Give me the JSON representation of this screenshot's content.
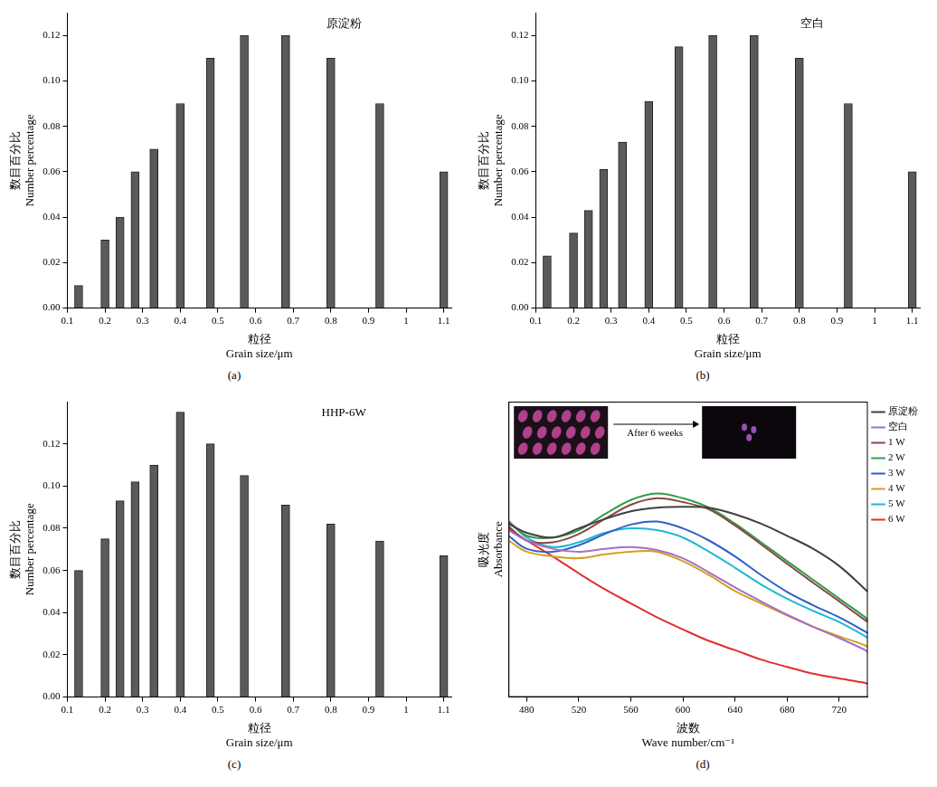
{
  "chart_data": [
    {
      "type": "bar",
      "title": "原淀粉",
      "panel_label": "(a)",
      "xlabel": [
        "粒径",
        "Grain size/μm"
      ],
      "ylabel": [
        "数目百分比",
        "Number percentage"
      ],
      "x": [
        0.13,
        0.2,
        0.24,
        0.28,
        0.33,
        0.4,
        0.48,
        0.57,
        0.68,
        0.8,
        0.93,
        1.1
      ],
      "values": [
        0.01,
        0.03,
        0.04,
        0.06,
        0.07,
        0.09,
        0.11,
        0.12,
        0.12,
        0.11,
        0.09,
        0.06
      ],
      "color": "#5a5a5a",
      "xlim": [
        0.1,
        1.12
      ],
      "xticks": [
        0.1,
        0.2,
        0.3,
        0.4,
        0.5,
        0.6,
        0.7,
        0.8,
        0.9,
        1.0,
        1.1
      ],
      "ylim": [
        0,
        0.13
      ],
      "yticks": [
        {
          "value": 0,
          "label": "0.00"
        },
        {
          "value": 0.02,
          "label": "0.02"
        },
        {
          "value": 0.04,
          "label": "0.04"
        },
        {
          "value": 0.06,
          "label": "0.06"
        },
        {
          "value": 0.08,
          "label": "0.08"
        },
        {
          "value": 0.1,
          "label": "0.10"
        },
        {
          "value": 0.12,
          "label": "0.12"
        }
      ],
      "grid": false
    },
    {
      "type": "bar",
      "title": "空白",
      "panel_label": "(b)",
      "xlabel": [
        "粒径",
        "Grain size/μm"
      ],
      "ylabel": [
        "数目百分比",
        "Number percentage"
      ],
      "x": [
        0.13,
        0.2,
        0.24,
        0.28,
        0.33,
        0.4,
        0.48,
        0.57,
        0.68,
        0.8,
        0.93,
        1.1
      ],
      "values": [
        0.023,
        0.033,
        0.043,
        0.061,
        0.073,
        0.091,
        0.115,
        0.12,
        0.12,
        0.11,
        0.09,
        0.06
      ],
      "color": "#5a5a5a",
      "xlim": [
        0.1,
        1.12
      ],
      "xticks": [
        0.1,
        0.2,
        0.3,
        0.4,
        0.5,
        0.6,
        0.7,
        0.8,
        0.9,
        1.0,
        1.1
      ],
      "ylim": [
        0,
        0.13
      ],
      "yticks": [
        {
          "value": 0,
          "label": "0.00"
        },
        {
          "value": 0.02,
          "label": "0.02"
        },
        {
          "value": 0.04,
          "label": "0.04"
        },
        {
          "value": 0.06,
          "label": "0.06"
        },
        {
          "value": 0.08,
          "label": "0.08"
        },
        {
          "value": 0.1,
          "label": "0.10"
        },
        {
          "value": 0.12,
          "label": "0.12"
        }
      ],
      "grid": false
    },
    {
      "type": "bar",
      "title": "HHP-6W",
      "panel_label": "(c)",
      "xlabel": [
        "粒径",
        "Grain size/μm"
      ],
      "ylabel": [
        "数目百分比",
        "Number percentage"
      ],
      "x": [
        0.13,
        0.2,
        0.24,
        0.28,
        0.33,
        0.4,
        0.48,
        0.57,
        0.68,
        0.8,
        0.93,
        1.1
      ],
      "values": [
        0.06,
        0.075,
        0.093,
        0.102,
        0.11,
        0.135,
        0.12,
        0.105,
        0.091,
        0.082,
        0.074,
        0.067
      ],
      "color": "#5a5a5a",
      "xlim": [
        0.1,
        1.12
      ],
      "xticks": [
        0.1,
        0.2,
        0.3,
        0.4,
        0.5,
        0.6,
        0.7,
        0.8,
        0.9,
        1.0,
        1.1
      ],
      "ylim": [
        0,
        0.14
      ],
      "yticks": [
        {
          "value": 0,
          "label": "0.00"
        },
        {
          "value": 0.02,
          "label": "0.02"
        },
        {
          "value": 0.04,
          "label": "0.04"
        },
        {
          "value": 0.06,
          "label": "0.06"
        },
        {
          "value": 0.08,
          "label": "0.08"
        },
        {
          "value": 0.1,
          "label": "0.10"
        },
        {
          "value": 0.12,
          "label": "0.12"
        }
      ],
      "grid": false
    },
    {
      "type": "line",
      "panel_label": "(d)",
      "xlabel": [
        "波数",
        "Wave number/cm⁻¹"
      ],
      "ylabel": [
        "吸光度",
        "Absorbance"
      ],
      "annotations": [
        "After 6 weeks"
      ],
      "x": [
        466,
        480,
        500,
        520,
        540,
        560,
        580,
        600,
        620,
        640,
        660,
        680,
        700,
        720,
        740,
        742
      ],
      "series": [
        {
          "name": "原淀粉",
          "color": "#404040",
          "values": [
            0.587,
            0.556,
            0.54,
            0.571,
            0.603,
            0.629,
            0.641,
            0.644,
            0.641,
            0.619,
            0.587,
            0.546,
            0.502,
            0.444,
            0.365,
            0.356
          ]
        },
        {
          "name": "空白",
          "color": "#a070c8",
          "values": [
            0.565,
            0.53,
            0.502,
            0.492,
            0.502,
            0.508,
            0.498,
            0.47,
            0.422,
            0.371,
            0.324,
            0.279,
            0.238,
            0.2,
            0.159,
            0.152
          ]
        },
        {
          "name": "1 W",
          "color": "#8b4545",
          "values": [
            0.578,
            0.53,
            0.524,
            0.552,
            0.603,
            0.651,
            0.673,
            0.66,
            0.635,
            0.581,
            0.517,
            0.451,
            0.387,
            0.324,
            0.26,
            0.254
          ]
        },
        {
          "name": "2 W",
          "color": "#2e9e48",
          "values": [
            0.594,
            0.546,
            0.54,
            0.565,
            0.619,
            0.667,
            0.689,
            0.673,
            0.641,
            0.587,
            0.524,
            0.46,
            0.397,
            0.333,
            0.27,
            0.26
          ]
        },
        {
          "name": "3 W",
          "color": "#2f5fc8",
          "values": [
            0.546,
            0.502,
            0.492,
            0.514,
            0.552,
            0.584,
            0.594,
            0.571,
            0.53,
            0.476,
            0.413,
            0.356,
            0.311,
            0.27,
            0.222,
            0.216
          ]
        },
        {
          "name": "4 W",
          "color": "#d4a020",
          "values": [
            0.53,
            0.492,
            0.476,
            0.47,
            0.483,
            0.492,
            0.492,
            0.46,
            0.413,
            0.359,
            0.317,
            0.276,
            0.238,
            0.206,
            0.175,
            0.168
          ]
        },
        {
          "name": "5 W",
          "color": "#20b8d0",
          "values": [
            0.597,
            0.54,
            0.508,
            0.524,
            0.556,
            0.571,
            0.565,
            0.54,
            0.492,
            0.438,
            0.381,
            0.333,
            0.292,
            0.254,
            0.206,
            0.2
          ]
        },
        {
          "name": "6 W",
          "color": "#e03030",
          "values": [
            0.571,
            0.53,
            0.476,
            0.419,
            0.365,
            0.317,
            0.27,
            0.229,
            0.19,
            0.159,
            0.127,
            0.102,
            0.079,
            0.063,
            0.048,
            0.044
          ]
        }
      ],
      "xlim": [
        466,
        742
      ],
      "xticks": [
        480,
        520,
        560,
        600,
        640,
        680,
        720
      ],
      "ylim": [
        0,
        1
      ],
      "tick_labels": "x",
      "legend": "right",
      "grid": false
    }
  ]
}
